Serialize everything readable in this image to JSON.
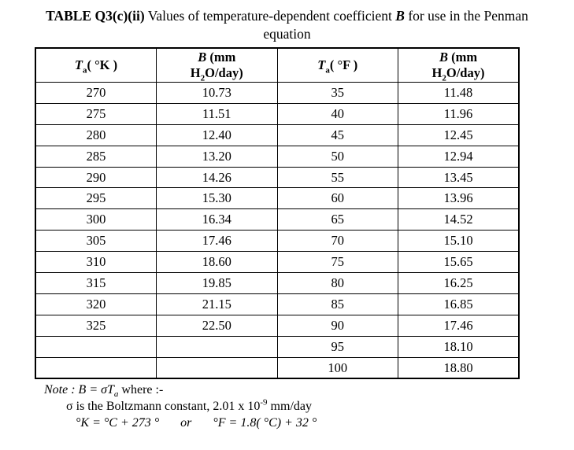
{
  "title": {
    "line1_bold": "TABLE Q3(c)(ii)",
    "line1_mid": " Values of temperature-dependent coefficient ",
    "line1_b": "B",
    "line1_end": " for use in the Penman",
    "line2": "equation"
  },
  "table": {
    "headers": {
      "col1": {
        "sym": "T",
        "sub": "a",
        "rest": "( °K )"
      },
      "col2": {
        "sym": "B",
        "line1_rest": " (mm",
        "line2_pre": "H",
        "line2_sub": "2",
        "line2_rest": "O/day)"
      },
      "col3": {
        "sym": "T",
        "sub": "a",
        "rest": "( °F )"
      },
      "col4": {
        "sym": "B",
        "line1_rest": " (mm",
        "line2_pre": "H",
        "line2_sub": "2",
        "line2_rest": "O/day)"
      }
    },
    "rows": [
      [
        "270",
        "10.73",
        "35",
        "11.48"
      ],
      [
        "275",
        "11.51",
        "40",
        "11.96"
      ],
      [
        "280",
        "12.40",
        "45",
        "12.45"
      ],
      [
        "285",
        "13.20",
        "50",
        "12.94"
      ],
      [
        "290",
        "14.26",
        "55",
        "13.45"
      ],
      [
        "295",
        "15.30",
        "60",
        "13.96"
      ],
      [
        "300",
        "16.34",
        "65",
        "14.52"
      ],
      [
        "305",
        "17.46",
        "70",
        "15.10"
      ],
      [
        "310",
        "18.60",
        "75",
        "15.65"
      ],
      [
        "315",
        "19.85",
        "80",
        "16.25"
      ],
      [
        "320",
        "21.15",
        "85",
        "16.85"
      ],
      [
        "325",
        "22.50",
        "90",
        "17.46"
      ],
      [
        "",
        "",
        "95",
        "18.10"
      ],
      [
        "",
        "",
        "100",
        "18.80"
      ]
    ]
  },
  "note": {
    "l1_note": "Note : ",
    "l1_eq": "B = σT",
    "l1_sub": "a",
    "l1_post": "  where :-",
    "l2_pre": "σ is the Boltzmann constant, 2.01 x 10",
    "l2_sup": "-9",
    "l2_post": " mm/day",
    "l3_left": "°K = °C + 273 °",
    "l3_or": "or",
    "l3_right": "°F = 1.8( °C) + 32 °"
  }
}
